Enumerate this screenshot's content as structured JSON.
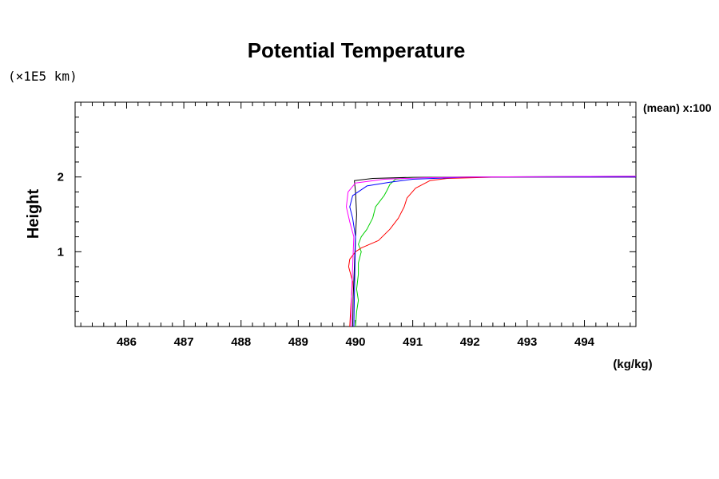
{
  "chart_data": {
    "type": "line",
    "title": "Potential Temperature",
    "y_unit_label": "(×1E5 km)",
    "ylabel": "Height",
    "xlabel": "(kg/kg)",
    "annotation": "(mean) x:100",
    "xlim": [
      485.1,
      494.9
    ],
    "ylim": [
      0,
      3.0
    ],
    "x_ticks": [
      486,
      487,
      488,
      489,
      490,
      491,
      492,
      493,
      494
    ],
    "y_ticks": [
      1,
      2
    ],
    "grid": false,
    "series": [
      {
        "color": "#000000",
        "points": [
          [
            489.95,
            0
          ],
          [
            489.96,
            0.4
          ],
          [
            489.98,
            0.8
          ],
          [
            490.0,
            1.2
          ],
          [
            490.02,
            1.5
          ],
          [
            490.0,
            1.8
          ],
          [
            489.98,
            1.95
          ],
          [
            490.3,
            1.98
          ],
          [
            491.0,
            1.995
          ],
          [
            492.0,
            2.0
          ],
          [
            494.9,
            2.0
          ]
        ]
      },
      {
        "color": "#00d000",
        "points": [
          [
            490.0,
            0
          ],
          [
            490.02,
            0.2
          ],
          [
            490.05,
            0.35
          ],
          [
            490.02,
            0.5
          ],
          [
            490.05,
            0.7
          ],
          [
            490.05,
            0.85
          ],
          [
            490.1,
            1.0
          ],
          [
            490.05,
            1.1
          ],
          [
            490.1,
            1.2
          ],
          [
            490.2,
            1.3
          ],
          [
            490.3,
            1.45
          ],
          [
            490.35,
            1.6
          ],
          [
            490.5,
            1.75
          ],
          [
            490.55,
            1.82
          ],
          [
            490.6,
            1.9
          ],
          [
            490.7,
            1.97
          ],
          [
            491.0,
            1.99
          ],
          [
            492.0,
            2.0
          ],
          [
            494.9,
            2.01
          ]
        ]
      },
      {
        "color": "#ff0000",
        "points": [
          [
            489.9,
            0
          ],
          [
            489.92,
            0.3
          ],
          [
            489.95,
            0.6
          ],
          [
            489.88,
            0.8
          ],
          [
            489.9,
            0.9
          ],
          [
            490.0,
            1.0
          ],
          [
            490.1,
            1.05
          ],
          [
            490.4,
            1.15
          ],
          [
            490.6,
            1.3
          ],
          [
            490.75,
            1.45
          ],
          [
            490.85,
            1.6
          ],
          [
            490.9,
            1.72
          ],
          [
            491.05,
            1.85
          ],
          [
            491.3,
            1.95
          ],
          [
            491.6,
            1.98
          ],
          [
            492.5,
            2.0
          ],
          [
            494.9,
            2.0
          ]
        ]
      },
      {
        "color": "#0000ff",
        "points": [
          [
            489.97,
            0
          ],
          [
            489.98,
            0.4
          ],
          [
            489.99,
            0.8
          ],
          [
            490.0,
            1.2
          ],
          [
            489.95,
            1.45
          ],
          [
            489.9,
            1.6
          ],
          [
            489.95,
            1.75
          ],
          [
            490.2,
            1.88
          ],
          [
            490.6,
            1.93
          ],
          [
            491.0,
            1.97
          ],
          [
            492.0,
            2.0
          ],
          [
            494.9,
            2.0
          ]
        ]
      },
      {
        "color": "#ff00ff",
        "points": [
          [
            489.92,
            0
          ],
          [
            489.93,
            0.4
          ],
          [
            489.95,
            0.8
          ],
          [
            489.97,
            1.2
          ],
          [
            489.9,
            1.4
          ],
          [
            489.84,
            1.6
          ],
          [
            489.87,
            1.8
          ],
          [
            490.0,
            1.92
          ],
          [
            490.5,
            1.97
          ],
          [
            491.2,
            1.99
          ],
          [
            492.0,
            2.0
          ],
          [
            494.9,
            2.01
          ]
        ]
      }
    ]
  }
}
